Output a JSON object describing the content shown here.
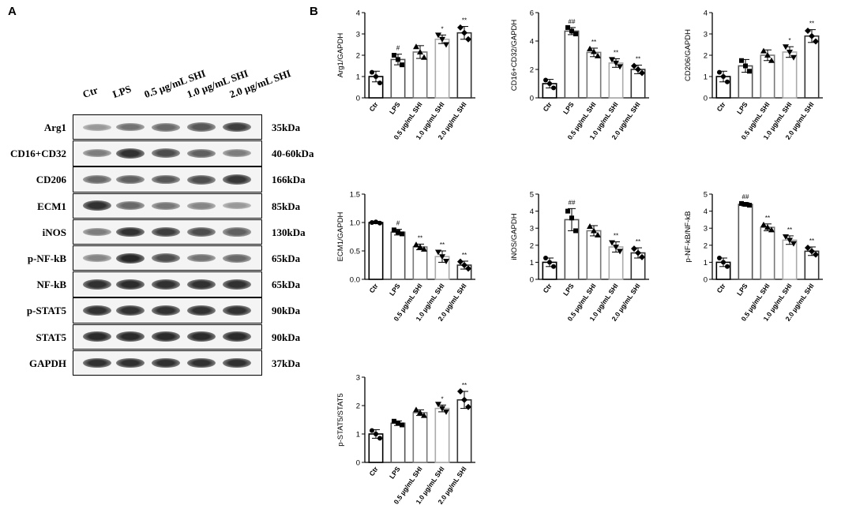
{
  "panels": {
    "a": "A",
    "b": "B"
  },
  "western_blot": {
    "lanes": [
      "Ctr",
      "LPS",
      "0.5 µg/mL SHI",
      "1.0 µg/mL SHI",
      "2.0 µg/mL SHI"
    ],
    "rows": [
      {
        "name": "Arg1",
        "size": "35kDa",
        "intensity": [
          0.3,
          0.5,
          0.55,
          0.65,
          0.78
        ]
      },
      {
        "name": "CD16+CD32",
        "size": "40-60kDa",
        "intensity": [
          0.45,
          0.85,
          0.7,
          0.6,
          0.45
        ]
      },
      {
        "name": "CD206",
        "size": "166kDa",
        "intensity": [
          0.55,
          0.6,
          0.65,
          0.7,
          0.82
        ]
      },
      {
        "name": "ECM1",
        "size": "85kDa",
        "intensity": [
          0.85,
          0.55,
          0.48,
          0.4,
          0.3
        ]
      },
      {
        "name": "iNOS",
        "size": "130kDa",
        "intensity": [
          0.45,
          0.85,
          0.78,
          0.7,
          0.6
        ]
      },
      {
        "name": "p-NF-kB",
        "size": "65kDa",
        "intensity": [
          0.4,
          0.9,
          0.7,
          0.5,
          0.55
        ]
      },
      {
        "name": "NF-kB",
        "size": "65kDa",
        "intensity": [
          0.85,
          0.88,
          0.85,
          0.85,
          0.85
        ]
      },
      {
        "name": "p-STAT5",
        "size": "90kDa",
        "intensity": [
          0.85,
          0.85,
          0.85,
          0.85,
          0.85
        ]
      },
      {
        "name": "STAT5",
        "size": "90kDa",
        "intensity": [
          0.88,
          0.88,
          0.88,
          0.88,
          0.88
        ]
      },
      {
        "name": "GAPDH",
        "size": "37kDa",
        "intensity": [
          0.85,
          0.85,
          0.85,
          0.85,
          0.85
        ]
      }
    ]
  },
  "chart_data": [
    {
      "type": "bar",
      "ylabel": "Arg1/GAPDH",
      "ylim": [
        0,
        4
      ],
      "yticks": [
        0,
        1,
        2,
        3,
        4
      ],
      "categories": [
        "Ctr",
        "LPS",
        "0.5 µg/mL SHI",
        "1.0 µg/mL SHI",
        "2.0 µg/mL SHI"
      ],
      "values": [
        1.0,
        1.8,
        2.15,
        2.75,
        3.05
      ],
      "errors": [
        0.25,
        0.25,
        0.3,
        0.2,
        0.3
      ],
      "points": [
        [
          1.2,
          0.7,
          1.0
        ],
        [
          2.0,
          1.55,
          1.8
        ],
        [
          2.4,
          1.9,
          2.15
        ],
        [
          2.95,
          2.5,
          2.75
        ],
        [
          3.3,
          2.75,
          3.05
        ]
      ],
      "marks": [
        "",
        "#",
        "",
        "*",
        "**"
      ]
    },
    {
      "type": "bar",
      "ylabel": "CD16+CD32/GAPDH",
      "ylim": [
        0,
        6
      ],
      "yticks": [
        0,
        2,
        4,
        6
      ],
      "categories": [
        "Ctr",
        "LPS",
        "0.5 µg/mL SHI",
        "1.0 µg/mL SHI",
        "2.0 µg/mL SHI"
      ],
      "values": [
        1.0,
        4.7,
        3.2,
        2.45,
        2.0
      ],
      "errors": [
        0.3,
        0.25,
        0.3,
        0.3,
        0.3
      ],
      "points": [
        [
          1.25,
          0.7,
          1.0
        ],
        [
          4.95,
          4.5,
          4.7
        ],
        [
          3.45,
          2.95,
          3.25
        ],
        [
          2.7,
          2.2,
          2.45
        ],
        [
          2.25,
          1.75,
          2.0
        ]
      ],
      "marks": [
        "",
        "##",
        "**",
        "**",
        "**"
      ]
    },
    {
      "type": "bar",
      "ylabel": "CD206/GAPDH",
      "ylim": [
        0,
        4
      ],
      "yticks": [
        0,
        1,
        2,
        3,
        4
      ],
      "categories": [
        "Ctr",
        "LPS",
        "0.5 µg/mL SHI",
        "1.0 µg/mL SHI",
        "2.0 µg/mL SHI"
      ],
      "values": [
        1.0,
        1.5,
        2.0,
        2.15,
        2.9
      ],
      "errors": [
        0.25,
        0.3,
        0.25,
        0.25,
        0.3
      ],
      "points": [
        [
          1.2,
          0.75,
          1.0
        ],
        [
          1.75,
          1.25,
          1.5
        ],
        [
          2.2,
          1.75,
          2.0
        ],
        [
          2.4,
          1.9,
          2.15
        ],
        [
          3.15,
          2.65,
          2.9
        ]
      ],
      "marks": [
        "",
        "",
        "",
        "*",
        "**"
      ]
    },
    {
      "type": "bar",
      "ylabel": "ECM1/GAPDH",
      "ylim": [
        0,
        1.5
      ],
      "yticks": [
        0.0,
        0.5,
        1.0,
        1.5
      ],
      "categories": [
        "Ctr",
        "LPS",
        "0.5 µg/mL SHI",
        "1.0 µg/mL SHI",
        "2.0 µg/mL SHI"
      ],
      "values": [
        1.0,
        0.83,
        0.57,
        0.4,
        0.25
      ],
      "errors": [
        0.02,
        0.05,
        0.05,
        0.1,
        0.07
      ],
      "points": [
        [
          1.0,
          0.99,
          1.01
        ],
        [
          0.87,
          0.8,
          0.83
        ],
        [
          0.61,
          0.53,
          0.57
        ],
        [
          0.48,
          0.32,
          0.4
        ],
        [
          0.31,
          0.19,
          0.25
        ]
      ],
      "marks": [
        "",
        "#",
        "**",
        "**",
        "**"
      ]
    },
    {
      "type": "bar",
      "ylabel": "iNOS/GAPDH",
      "ylim": [
        0,
        5
      ],
      "yticks": [
        0,
        1,
        2,
        3,
        4,
        5
      ],
      "categories": [
        "Ctr",
        "LPS",
        "0.5 µg/mL SHI",
        "1.0 µg/mL SHI",
        "2.0 µg/mL SHI"
      ],
      "values": [
        1.0,
        3.5,
        2.85,
        1.9,
        1.55
      ],
      "errors": [
        0.25,
        0.65,
        0.3,
        0.3,
        0.3
      ],
      "points": [
        [
          1.25,
          0.75,
          1.0
        ],
        [
          4.0,
          2.85,
          3.6
        ],
        [
          3.1,
          2.6,
          2.85
        ],
        [
          2.15,
          1.65,
          1.9
        ],
        [
          1.8,
          1.3,
          1.55
        ]
      ],
      "marks": [
        "",
        "##",
        "",
        "**",
        "**"
      ]
    },
    {
      "type": "bar",
      "ylabel": "p-NF-kB/NF-kB",
      "ylim": [
        0,
        5
      ],
      "yticks": [
        0,
        1,
        2,
        3,
        4,
        5
      ],
      "categories": [
        "Ctr",
        "LPS",
        "0.5 µg/mL SHI",
        "1.0 µg/mL SHI",
        "2.0 µg/mL SHI"
      ],
      "values": [
        1.0,
        4.4,
        3.05,
        2.3,
        1.65
      ],
      "errors": [
        0.25,
        0.1,
        0.2,
        0.25,
        0.25
      ],
      "points": [
        [
          1.25,
          0.75,
          1.0
        ],
        [
          4.45,
          4.35,
          4.4
        ],
        [
          3.2,
          2.9,
          3.05
        ],
        [
          2.5,
          2.1,
          2.3
        ],
        [
          1.85,
          1.45,
          1.65
        ]
      ],
      "marks": [
        "",
        "##",
        "**",
        "**",
        "**"
      ]
    },
    {
      "type": "bar",
      "ylabel": "p-STAT5/STAT5",
      "ylim": [
        0,
        3
      ],
      "yticks": [
        0,
        1,
        2,
        3
      ],
      "categories": [
        "Ctr",
        "LPS",
        "0.5 µg/mL SHI",
        "1.0 µg/mL SHI",
        "2.0 µg/mL SHI"
      ],
      "values": [
        1.0,
        1.38,
        1.75,
        1.9,
        2.2
      ],
      "errors": [
        0.15,
        0.08,
        0.1,
        0.12,
        0.3
      ],
      "points": [
        [
          1.12,
          0.85,
          1.0
        ],
        [
          1.45,
          1.32,
          1.38
        ],
        [
          1.85,
          1.65,
          1.75
        ],
        [
          2.05,
          1.78,
          1.9
        ],
        [
          2.5,
          1.95,
          2.2
        ]
      ],
      "marks": [
        "",
        "",
        "",
        "*",
        "**"
      ]
    }
  ]
}
